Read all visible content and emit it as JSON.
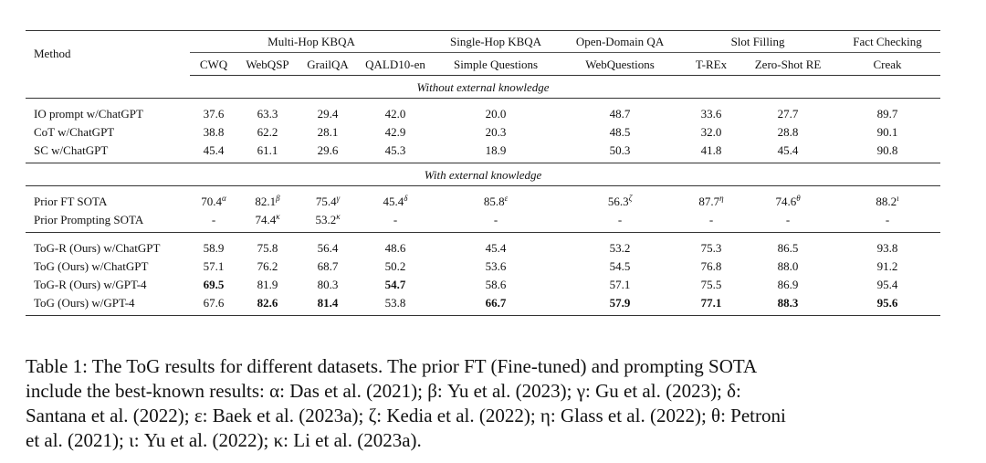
{
  "table": {
    "method_header": "Method",
    "group_headers": [
      {
        "label": "Multi-Hop KBQA"
      },
      {
        "label": "Single-Hop KBQA"
      },
      {
        "label": "Open-Domain QA"
      },
      {
        "label": "Slot Filling"
      },
      {
        "label": "Fact Checking"
      }
    ],
    "columns": [
      "CWQ",
      "WebQSP",
      "GrailQA",
      "QALD10-en",
      "Simple Questions",
      "WebQuestions",
      "T-REx",
      "Zero-Shot RE",
      "Creak"
    ],
    "section_without": "Without external knowledge",
    "section_with": "With external knowledge",
    "rows_without": [
      {
        "method": "IO prompt w/ChatGPT",
        "values": [
          "37.6",
          "63.3",
          "29.4",
          "42.0",
          "20.0",
          "48.7",
          "33.6",
          "27.7",
          "89.7"
        ]
      },
      {
        "method": "CoT w/ChatGPT",
        "values": [
          "38.8",
          "62.2",
          "28.1",
          "42.9",
          "20.3",
          "48.5",
          "32.0",
          "28.8",
          "90.1"
        ]
      },
      {
        "method": "SC w/ChatGPT",
        "values": [
          "45.4",
          "61.1",
          "29.6",
          "45.3",
          "18.9",
          "50.3",
          "41.8",
          "45.4",
          "90.8"
        ]
      }
    ],
    "rows_prior": [
      {
        "method": "Prior FT SOTA",
        "values": [
          "70.4",
          "82.1",
          "75.4",
          "45.4",
          "85.8",
          "56.3",
          "87.7",
          "74.6",
          "88.2"
        ],
        "sups": [
          "α",
          "β",
          "γ",
          "δ",
          "ε",
          "ζ",
          "η",
          "θ",
          "ι"
        ]
      },
      {
        "method": "Prior Prompting SOTA",
        "values": [
          "-",
          "74.4",
          "53.2",
          "-",
          "-",
          "-",
          "-",
          "-",
          "-"
        ],
        "sups": [
          "",
          "κ",
          "κ",
          "",
          "",
          "",
          "",
          "",
          ""
        ]
      }
    ],
    "rows_tog": [
      {
        "method": "ToG-R (Ours) w/ChatGPT",
        "values": [
          "58.9",
          "75.8",
          "56.4",
          "48.6",
          "45.4",
          "53.2",
          "75.3",
          "86.5",
          "93.8"
        ],
        "bold": []
      },
      {
        "method": "ToG (Ours) w/ChatGPT",
        "values": [
          "57.1",
          "76.2",
          "68.7",
          "50.2",
          "53.6",
          "54.5",
          "76.8",
          "88.0",
          "91.2"
        ],
        "bold": []
      },
      {
        "method": "ToG-R (Ours) w/GPT-4",
        "values": [
          "69.5",
          "81.9",
          "80.3",
          "54.7",
          "58.6",
          "57.1",
          "75.5",
          "86.9",
          "95.4"
        ],
        "bold": [
          0,
          3
        ]
      },
      {
        "method": "ToG (Ours) w/GPT-4",
        "values": [
          "67.6",
          "82.6",
          "81.4",
          "53.8",
          "66.7",
          "57.9",
          "77.1",
          "88.3",
          "95.6"
        ],
        "bold": [
          1,
          2,
          4,
          5,
          6,
          7,
          8
        ]
      }
    ]
  },
  "caption": {
    "lines": [
      "Table 1: The ToG results for different datasets. The prior FT (Fine-tuned) and prompting SOTA",
      "include the best-known results: α: Das et al. (2021); β: Yu et al. (2023); γ: Gu et al. (2023); δ:",
      "Santana et al. (2022); ε: Baek et al. (2023a); ζ: Kedia et al. (2022); η: Glass et al. (2022); θ: Petroni",
      "et al. (2021); ι: Yu et al. (2022); κ: Li et al. (2023a)."
    ]
  }
}
